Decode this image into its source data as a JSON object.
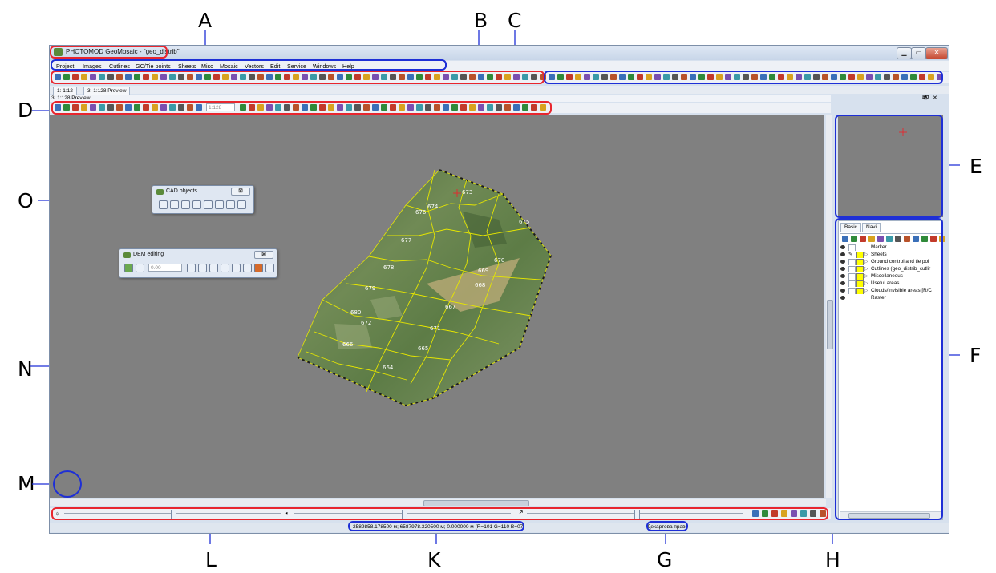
{
  "callouts": {
    "A": "A",
    "B": "B",
    "C": "C",
    "D": "D",
    "E": "E",
    "F": "F",
    "G": "G",
    "H": "H",
    "K": "K",
    "L": "L",
    "M": "M",
    "N": "N",
    "O": "O"
  },
  "window": {
    "title": "PHOTOMOD GeoMosaic - \"geo_distrib\""
  },
  "menu": [
    "Project",
    "Images",
    "Cutlines",
    "GC/Tie points",
    "Sheets",
    "Misc",
    "Mosaic",
    "Vectors",
    "Edit",
    "Service",
    "Windows",
    "Help"
  ],
  "tabs": [
    "1: 1:12",
    "3: 1:128 Preview"
  ],
  "view_title": "3: 1:128 Preview",
  "zoom_field": "1:128",
  "palettes": {
    "cad": {
      "title": "CAD objects",
      "close": "⊠"
    },
    "dem": {
      "title": "DEM editing",
      "value": "0.00",
      "close": "⊠"
    }
  },
  "layers": {
    "tabs": [
      "Basic",
      "Navi"
    ],
    "items": [
      "Marker",
      "Sheets",
      "Ground control and tie poi",
      "Cutlines (geo_distrib_cutlir",
      "Miscellaneous",
      "Useful areas",
      "Clouds/Invisible areas [R/C",
      "Raster"
    ]
  },
  "sheets": [
    "673",
    "674",
    "675",
    "676",
    "677",
    "678",
    "679",
    "680",
    "667",
    "668",
    "669",
    "670",
    "671",
    "664",
    "665",
    "666",
    "672"
  ],
  "status": {
    "coords": "2589858.178500 м; 6587978.320500 м; 0.000000 м  (R=101 G=110 B=07)",
    "coord_system": "Декартова праве"
  },
  "colors": {
    "canvas": "#808080",
    "highlight_red": "#e8262e",
    "highlight_blue": "#1e2fd6",
    "sheet_outline": "#e6e600",
    "accent": "#ffff00"
  }
}
